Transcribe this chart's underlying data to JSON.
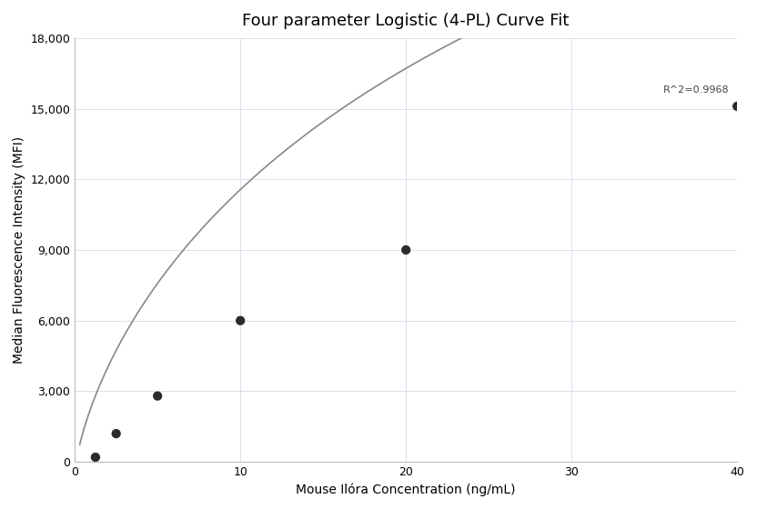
{
  "title": "Four parameter Logistic (4-PL) Curve Fit",
  "xlabel": "Mouse Ilóra Concentration (ng/mL)",
  "ylabel": "Median Fluorescence Intensity (MFI)",
  "xlim": [
    0,
    40
  ],
  "ylim": [
    0,
    18000
  ],
  "xticks": [
    0,
    10,
    20,
    30,
    40
  ],
  "yticks": [
    0,
    3000,
    6000,
    9000,
    12000,
    15000,
    18000
  ],
  "ytick_labels": [
    "0",
    "3,000",
    "6,000",
    "9,000",
    "12,000",
    "15,000",
    "18,000"
  ],
  "data_x": [
    1.25,
    2.5,
    5.0,
    10.0,
    20.0,
    40.0
  ],
  "data_y": [
    200,
    1200,
    2800,
    6000,
    9000,
    15100
  ],
  "r_squared": "R^2=0.9968",
  "r2_x": 39.5,
  "r2_y": 15600,
  "dot_color": "#2b2b2b",
  "dot_size": 55,
  "line_color": "#888888",
  "line_width": 1.2,
  "grid_color": "#d8d8e8",
  "bg_color": "#ffffff",
  "title_fontsize": 13,
  "label_fontsize": 10,
  "tick_fontsize": 9,
  "4pl_A": -500,
  "4pl_B": 0.72,
  "4pl_C": 50.0,
  "4pl_D": 50000
}
